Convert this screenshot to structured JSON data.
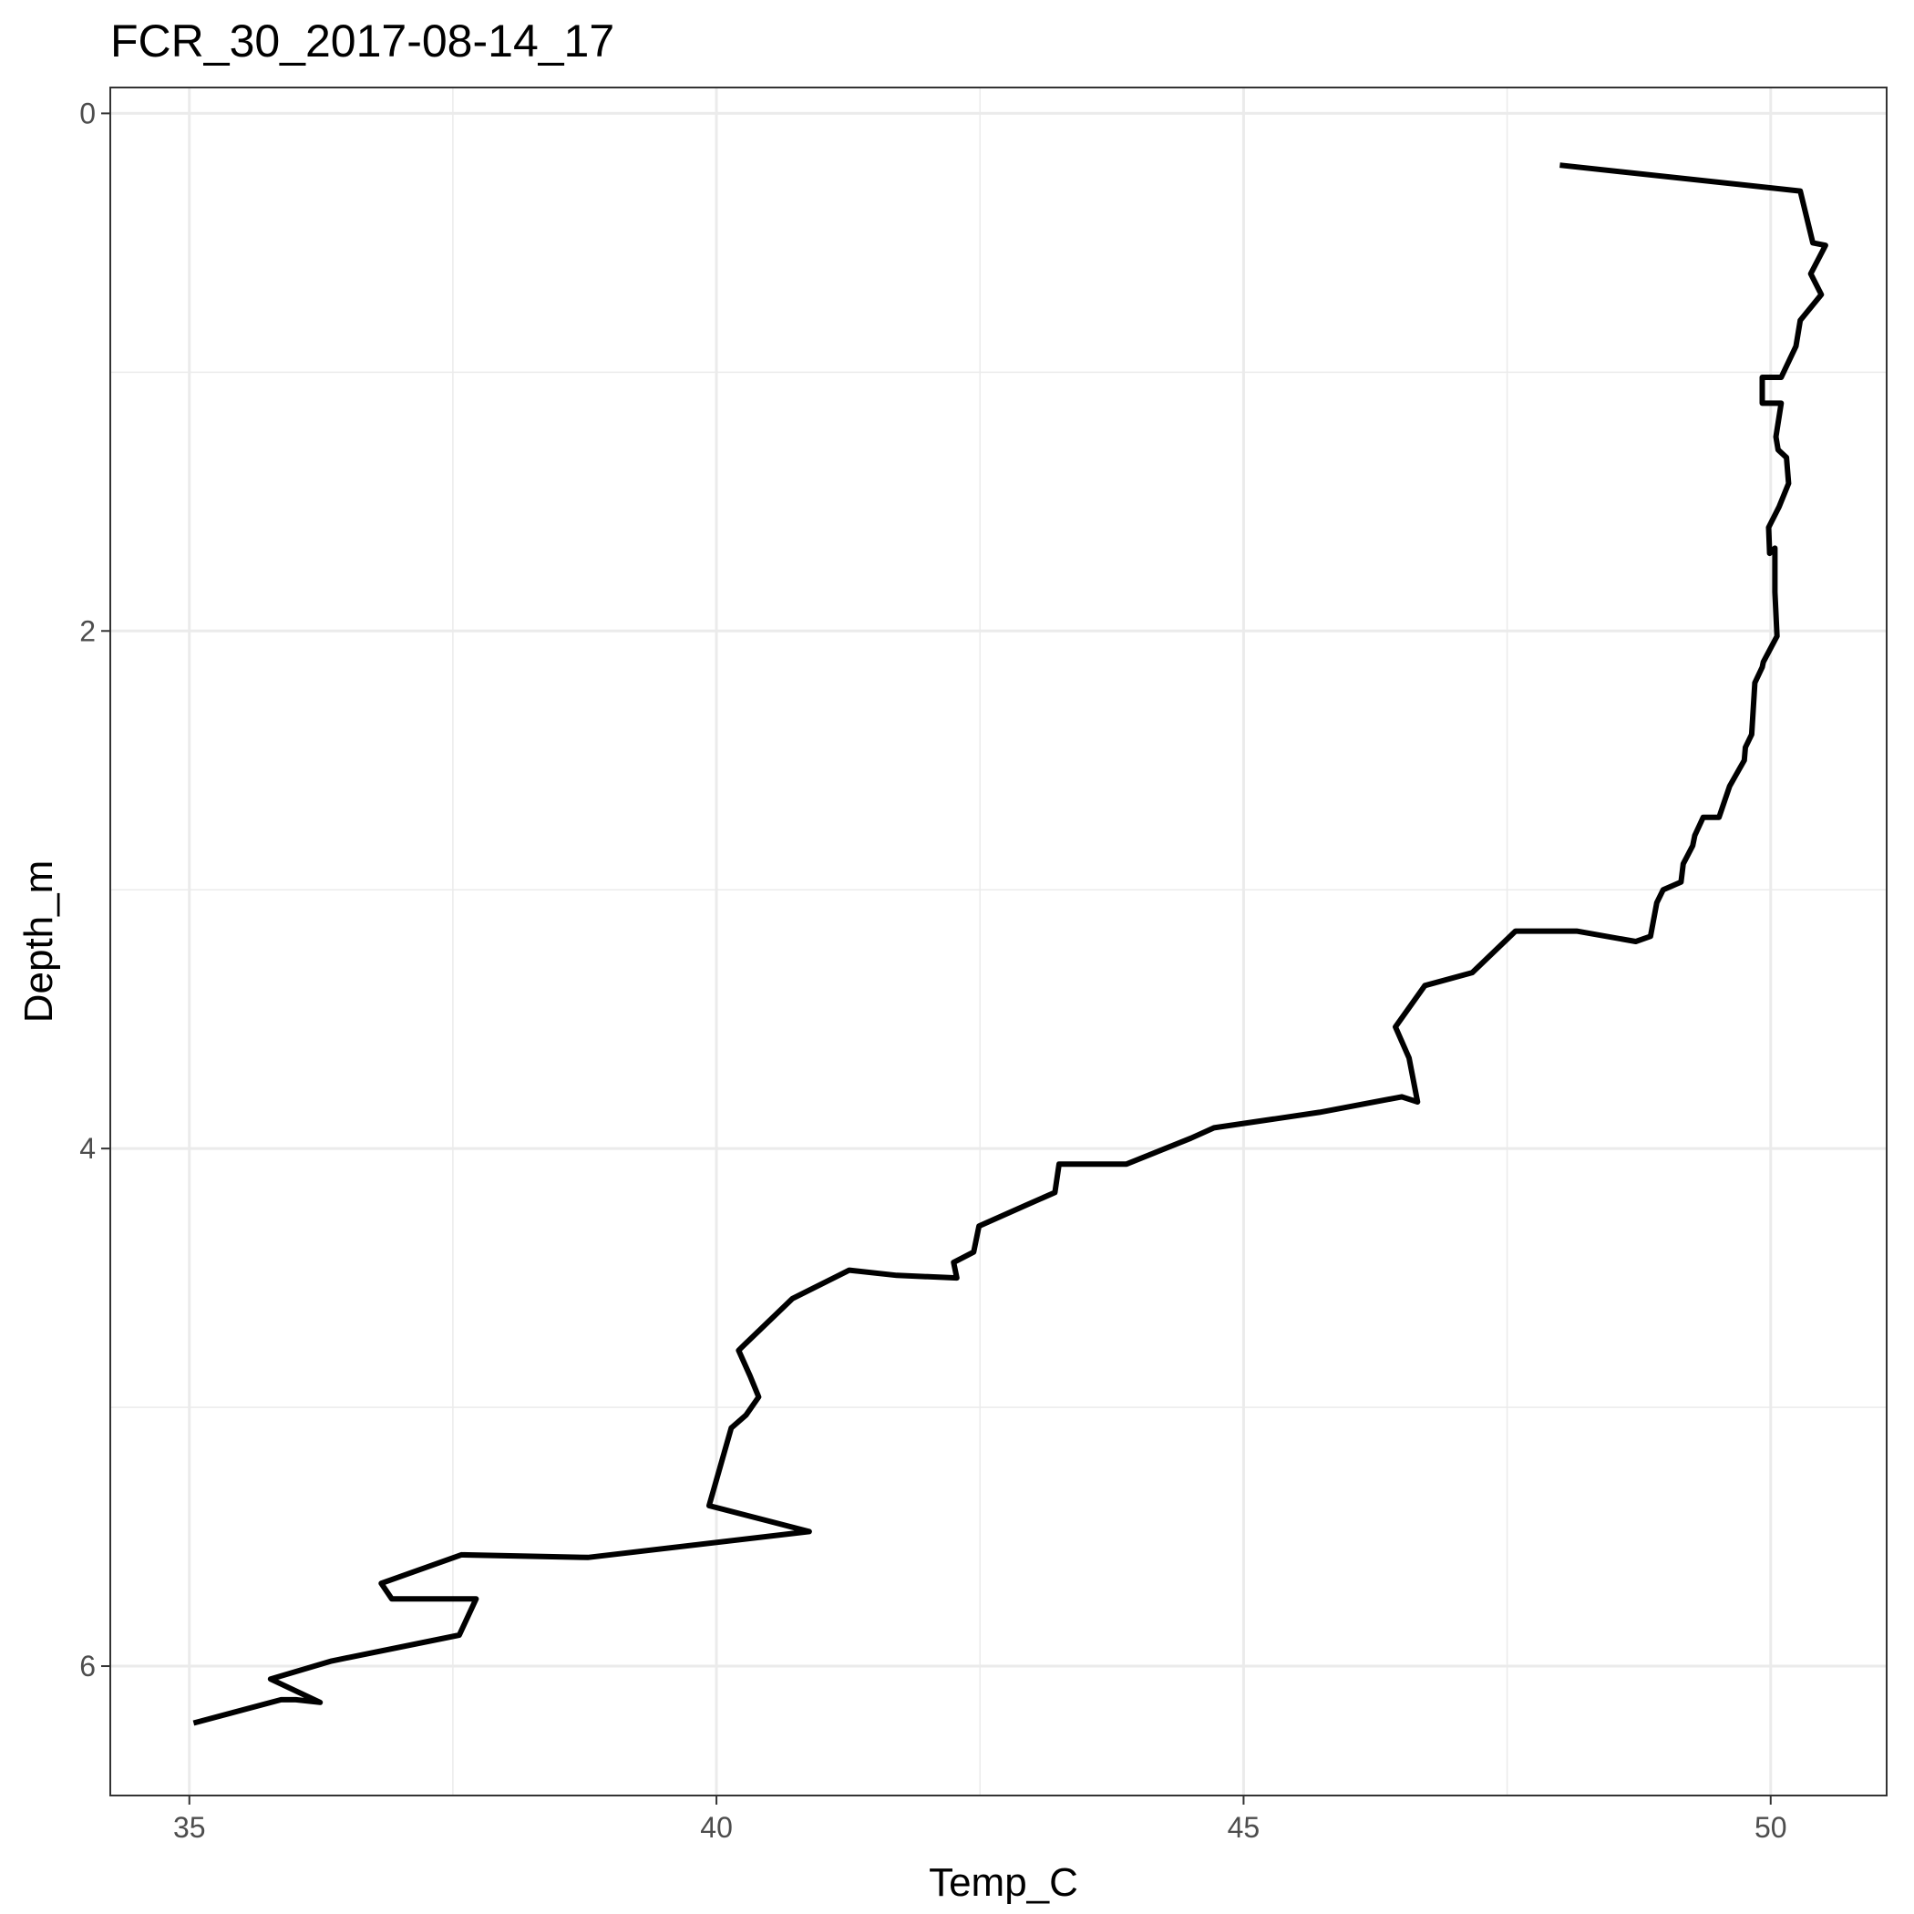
{
  "chart_data": {
    "type": "line",
    "title": "FCR_30_2017-08-14_17",
    "xlabel": "Temp_C",
    "ylabel": "Depth_m",
    "xlim": [
      34.25,
      51.1
    ],
    "ylim": [
      6.5,
      -0.1
    ],
    "y_reversed": true,
    "x_ticks": [
      35,
      40,
      45,
      50
    ],
    "x_tick_labels": [
      "35",
      "40",
      "45",
      "50"
    ],
    "y_ticks": [
      0,
      2,
      4,
      6
    ],
    "y_tick_labels": [
      "0",
      "2",
      "4",
      "6"
    ],
    "grid": true,
    "legend": "none",
    "colors": {
      "line": "#000000",
      "grid": "#ebebeb",
      "border": "#333333"
    },
    "series": [
      {
        "x": [
          48.0,
          50.28,
          50.4,
          50.52,
          50.38,
          50.48,
          50.28,
          50.24,
          50.1,
          49.92,
          49.92,
          50.1,
          50.05,
          50.07,
          50.15,
          50.17,
          50.08,
          49.98,
          49.99,
          50.04,
          50.04,
          50.06,
          49.93,
          49.92,
          49.85,
          49.82,
          49.76,
          49.75,
          49.61,
          49.51,
          49.36,
          49.28,
          49.26,
          49.17,
          49.15,
          48.98,
          48.92,
          48.86,
          48.72,
          48.16,
          47.58,
          47.17,
          46.72,
          46.44,
          46.57,
          46.65,
          46.5,
          45.72,
          44.72,
          44.5,
          43.89,
          43.25,
          43.21,
          42.93,
          42.49,
          42.44,
          42.25,
          42.28,
          41.71,
          41.26,
          40.72,
          40.26,
          40.21,
          40.32,
          40.4,
          40.28,
          40.14,
          39.93,
          40.88,
          38.78,
          37.58,
          36.82,
          36.92,
          37.72,
          37.56,
          36.35,
          35.77,
          36.24,
          36.01,
          35.87,
          35.04
        ],
        "y": [
          0.2,
          0.3,
          0.5,
          0.51,
          0.62,
          0.7,
          0.8,
          0.9,
          1.02,
          1.02,
          1.12,
          1.12,
          1.25,
          1.3,
          1.33,
          1.43,
          1.52,
          1.6,
          1.7,
          1.68,
          1.85,
          2.02,
          2.12,
          2.14,
          2.2,
          2.4,
          2.45,
          2.5,
          2.6,
          2.72,
          2.72,
          2.79,
          2.83,
          2.9,
          2.97,
          3.0,
          3.05,
          3.18,
          3.2,
          3.16,
          3.16,
          3.32,
          3.37,
          3.53,
          3.65,
          3.82,
          3.8,
          3.86,
          3.92,
          3.96,
          4.06,
          4.06,
          4.17,
          4.22,
          4.3,
          4.4,
          4.44,
          4.5,
          4.49,
          4.47,
          4.58,
          4.76,
          4.78,
          4.88,
          4.96,
          5.03,
          5.08,
          5.38,
          5.48,
          5.58,
          5.57,
          5.68,
          5.74,
          5.74,
          5.88,
          5.98,
          6.05,
          6.14,
          6.13,
          6.13,
          6.22
        ]
      }
    ]
  }
}
